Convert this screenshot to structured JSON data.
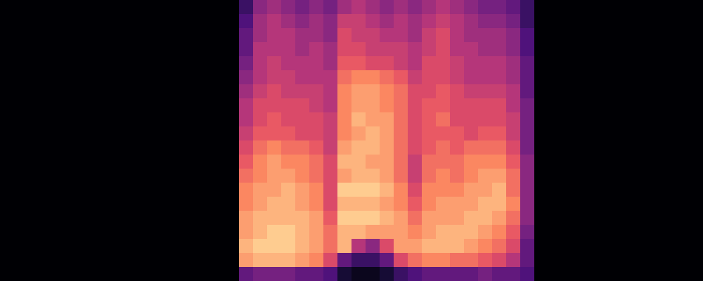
{
  "chart_data": {
    "type": "heatmap",
    "xlim": [
      0,
      50
    ],
    "ylim": [
      0,
      20
    ],
    "zlim": [
      0,
      1
    ],
    "tick_labels": false,
    "cells": [
      [
        0,
        0,
        0,
        0,
        0,
        0,
        0,
        0,
        0,
        0,
        0,
        0,
        0,
        0,
        0,
        0,
        0,
        0.2,
        0.4,
        0.45,
        0.4,
        0.35,
        0.4,
        0.35,
        0.45,
        0.5,
        0.45,
        0.4,
        0.45,
        0.4,
        0.45,
        0.5,
        0.45,
        0.4,
        0.35,
        0.35,
        0.3,
        0.2,
        0,
        0,
        0,
        0,
        0,
        0,
        0,
        0,
        0,
        0,
        0,
        0
      ],
      [
        0,
        0,
        0,
        0,
        0,
        0,
        0,
        0,
        0,
        0,
        0,
        0,
        0,
        0,
        0,
        0,
        0,
        0.25,
        0.45,
        0.5,
        0.45,
        0.4,
        0.45,
        0.4,
        0.55,
        0.55,
        0.5,
        0.45,
        0.5,
        0.45,
        0.5,
        0.55,
        0.5,
        0.45,
        0.4,
        0.4,
        0.35,
        0.2,
        0,
        0,
        0,
        0,
        0,
        0,
        0,
        0,
        0,
        0,
        0,
        0
      ],
      [
        0,
        0,
        0,
        0,
        0,
        0,
        0,
        0,
        0,
        0,
        0,
        0,
        0,
        0,
        0,
        0,
        0,
        0.3,
        0.45,
        0.5,
        0.5,
        0.45,
        0.45,
        0.4,
        0.6,
        0.55,
        0.55,
        0.5,
        0.5,
        0.45,
        0.55,
        0.6,
        0.5,
        0.45,
        0.45,
        0.45,
        0.4,
        0.25,
        0,
        0,
        0,
        0,
        0,
        0,
        0,
        0,
        0,
        0,
        0,
        0
      ],
      [
        0,
        0,
        0,
        0,
        0,
        0,
        0,
        0,
        0,
        0,
        0,
        0,
        0,
        0,
        0,
        0,
        0,
        0.3,
        0.5,
        0.5,
        0.5,
        0.45,
        0.5,
        0.45,
        0.6,
        0.6,
        0.55,
        0.55,
        0.55,
        0.5,
        0.55,
        0.6,
        0.5,
        0.5,
        0.45,
        0.45,
        0.4,
        0.25,
        0,
        0,
        0,
        0,
        0,
        0,
        0,
        0,
        0,
        0,
        0,
        0
      ],
      [
        0,
        0,
        0,
        0,
        0,
        0,
        0,
        0,
        0,
        0,
        0,
        0,
        0,
        0,
        0,
        0,
        0,
        0.35,
        0.5,
        0.55,
        0.5,
        0.5,
        0.5,
        0.45,
        0.65,
        0.65,
        0.6,
        0.6,
        0.55,
        0.5,
        0.6,
        0.6,
        0.55,
        0.5,
        0.5,
        0.5,
        0.45,
        0.3,
        0,
        0,
        0,
        0,
        0,
        0,
        0,
        0,
        0,
        0,
        0,
        0
      ],
      [
        0,
        0,
        0,
        0,
        0,
        0,
        0,
        0,
        0,
        0,
        0,
        0,
        0,
        0,
        0,
        0,
        0,
        0.4,
        0.5,
        0.55,
        0.55,
        0.5,
        0.5,
        0.5,
        0.7,
        0.75,
        0.75,
        0.7,
        0.65,
        0.55,
        0.6,
        0.6,
        0.55,
        0.5,
        0.5,
        0.5,
        0.45,
        0.3,
        0,
        0,
        0,
        0,
        0,
        0,
        0,
        0,
        0,
        0,
        0,
        0
      ],
      [
        0,
        0,
        0,
        0,
        0,
        0,
        0,
        0,
        0,
        0,
        0,
        0,
        0,
        0,
        0,
        0,
        0,
        0.45,
        0.55,
        0.6,
        0.55,
        0.55,
        0.55,
        0.5,
        0.75,
        0.8,
        0.8,
        0.75,
        0.7,
        0.6,
        0.6,
        0.65,
        0.6,
        0.55,
        0.55,
        0.55,
        0.5,
        0.3,
        0,
        0,
        0,
        0,
        0,
        0,
        0,
        0,
        0,
        0,
        0,
        0
      ],
      [
        0,
        0,
        0,
        0,
        0,
        0,
        0,
        0,
        0,
        0,
        0,
        0,
        0,
        0,
        0,
        0,
        0,
        0.5,
        0.6,
        0.6,
        0.6,
        0.6,
        0.55,
        0.5,
        0.75,
        0.8,
        0.8,
        0.75,
        0.7,
        0.6,
        0.65,
        0.65,
        0.6,
        0.6,
        0.6,
        0.6,
        0.5,
        0.35,
        0,
        0,
        0,
        0,
        0,
        0,
        0,
        0,
        0,
        0,
        0,
        0
      ],
      [
        0,
        0,
        0,
        0,
        0,
        0,
        0,
        0,
        0,
        0,
        0,
        0,
        0,
        0,
        0,
        0,
        0,
        0.5,
        0.6,
        0.65,
        0.6,
        0.6,
        0.6,
        0.55,
        0.75,
        0.85,
        0.8,
        0.8,
        0.7,
        0.6,
        0.65,
        0.7,
        0.6,
        0.6,
        0.6,
        0.6,
        0.55,
        0.35,
        0,
        0,
        0,
        0,
        0,
        0,
        0,
        0,
        0,
        0,
        0,
        0
      ],
      [
        0,
        0,
        0,
        0,
        0,
        0,
        0,
        0,
        0,
        0,
        0,
        0,
        0,
        0,
        0,
        0,
        0,
        0.55,
        0.65,
        0.65,
        0.65,
        0.6,
        0.6,
        0.55,
        0.75,
        0.8,
        0.85,
        0.8,
        0.7,
        0.6,
        0.65,
        0.65,
        0.65,
        0.6,
        0.65,
        0.65,
        0.55,
        0.35,
        0,
        0,
        0,
        0,
        0,
        0,
        0,
        0,
        0,
        0,
        0,
        0
      ],
      [
        0,
        0,
        0,
        0,
        0,
        0,
        0,
        0,
        0,
        0,
        0,
        0,
        0,
        0,
        0,
        0,
        0,
        0.6,
        0.7,
        0.75,
        0.7,
        0.7,
        0.65,
        0.55,
        0.8,
        0.85,
        0.85,
        0.8,
        0.7,
        0.6,
        0.65,
        0.7,
        0.65,
        0.7,
        0.7,
        0.7,
        0.6,
        0.35,
        0,
        0,
        0,
        0,
        0,
        0,
        0,
        0,
        0,
        0,
        0,
        0
      ],
      [
        0,
        0,
        0,
        0,
        0,
        0,
        0,
        0,
        0,
        0,
        0,
        0,
        0,
        0,
        0,
        0,
        0,
        0.65,
        0.75,
        0.8,
        0.75,
        0.75,
        0.7,
        0.6,
        0.85,
        0.85,
        0.8,
        0.8,
        0.7,
        0.55,
        0.7,
        0.7,
        0.7,
        0.75,
        0.75,
        0.75,
        0.65,
        0.4,
        0,
        0,
        0,
        0,
        0,
        0,
        0,
        0,
        0,
        0,
        0,
        0
      ],
      [
        0,
        0,
        0,
        0,
        0,
        0,
        0,
        0,
        0,
        0,
        0,
        0,
        0,
        0,
        0,
        0,
        0,
        0.7,
        0.75,
        0.8,
        0.8,
        0.75,
        0.7,
        0.6,
        0.8,
        0.85,
        0.85,
        0.8,
        0.7,
        0.55,
        0.7,
        0.75,
        0.7,
        0.75,
        0.8,
        0.8,
        0.7,
        0.4,
        0,
        0,
        0,
        0,
        0,
        0,
        0,
        0,
        0,
        0,
        0,
        0
      ],
      [
        0,
        0,
        0,
        0,
        0,
        0,
        0,
        0,
        0,
        0,
        0,
        0,
        0,
        0,
        0,
        0,
        0,
        0.75,
        0.8,
        0.8,
        0.85,
        0.8,
        0.75,
        0.6,
        0.9,
        0.9,
        0.9,
        0.85,
        0.75,
        0.6,
        0.75,
        0.75,
        0.75,
        0.8,
        0.8,
        0.85,
        0.7,
        0.4,
        0,
        0,
        0,
        0,
        0,
        0,
        0,
        0,
        0,
        0,
        0,
        0
      ],
      [
        0,
        0,
        0,
        0,
        0,
        0,
        0,
        0,
        0,
        0,
        0,
        0,
        0,
        0,
        0,
        0,
        0,
        0.75,
        0.8,
        0.85,
        0.85,
        0.8,
        0.75,
        0.6,
        0.85,
        0.85,
        0.85,
        0.8,
        0.75,
        0.65,
        0.75,
        0.8,
        0.8,
        0.8,
        0.85,
        0.85,
        0.75,
        0.4,
        0,
        0,
        0,
        0,
        0,
        0,
        0,
        0,
        0,
        0,
        0,
        0
      ],
      [
        0,
        0,
        0,
        0,
        0,
        0,
        0,
        0,
        0,
        0,
        0,
        0,
        0,
        0,
        0,
        0,
        0,
        0.8,
        0.85,
        0.85,
        0.85,
        0.85,
        0.8,
        0.65,
        0.9,
        0.9,
        0.9,
        0.85,
        0.8,
        0.7,
        0.8,
        0.8,
        0.8,
        0.85,
        0.85,
        0.8,
        0.7,
        0.4,
        0,
        0,
        0,
        0,
        0,
        0,
        0,
        0,
        0,
        0,
        0,
        0
      ],
      [
        0,
        0,
        0,
        0,
        0,
        0,
        0,
        0,
        0,
        0,
        0,
        0,
        0,
        0,
        0,
        0,
        0,
        0.8,
        0.85,
        0.9,
        0.9,
        0.85,
        0.8,
        0.7,
        0.85,
        0.85,
        0.8,
        0.8,
        0.8,
        0.75,
        0.8,
        0.85,
        0.85,
        0.85,
        0.8,
        0.75,
        0.65,
        0.35,
        0,
        0,
        0,
        0,
        0,
        0,
        0,
        0,
        0,
        0,
        0,
        0
      ],
      [
        0,
        0,
        0,
        0,
        0,
        0,
        0,
        0,
        0,
        0,
        0,
        0,
        0,
        0,
        0,
        0,
        0,
        0.85,
        0.9,
        0.9,
        0.9,
        0.85,
        0.8,
        0.7,
        0.85,
        0.5,
        0.4,
        0.6,
        0.8,
        0.8,
        0.85,
        0.85,
        0.85,
        0.8,
        0.75,
        0.7,
        0.6,
        0.3,
        0,
        0,
        0,
        0,
        0,
        0,
        0,
        0,
        0,
        0,
        0,
        0
      ],
      [
        0,
        0,
        0,
        0,
        0,
        0,
        0,
        0,
        0,
        0,
        0,
        0,
        0,
        0,
        0,
        0,
        0,
        0.8,
        0.85,
        0.85,
        0.85,
        0.8,
        0.75,
        0.6,
        0.3,
        0.2,
        0.2,
        0.3,
        0.6,
        0.7,
        0.75,
        0.75,
        0.7,
        0.7,
        0.65,
        0.6,
        0.5,
        0.3,
        0,
        0,
        0,
        0,
        0,
        0,
        0,
        0,
        0,
        0,
        0,
        0
      ],
      [
        0,
        0,
        0,
        0,
        0,
        0,
        0,
        0,
        0,
        0,
        0,
        0,
        0,
        0,
        0,
        0,
        0,
        0.3,
        0.35,
        0.35,
        0.35,
        0.3,
        0.3,
        0.25,
        0.1,
        0.05,
        0.05,
        0.1,
        0.2,
        0.25,
        0.3,
        0.3,
        0.3,
        0.3,
        0.35,
        0.3,
        0.3,
        0.25,
        0,
        0,
        0,
        0,
        0,
        0,
        0,
        0,
        0,
        0,
        0,
        0
      ]
    ]
  }
}
